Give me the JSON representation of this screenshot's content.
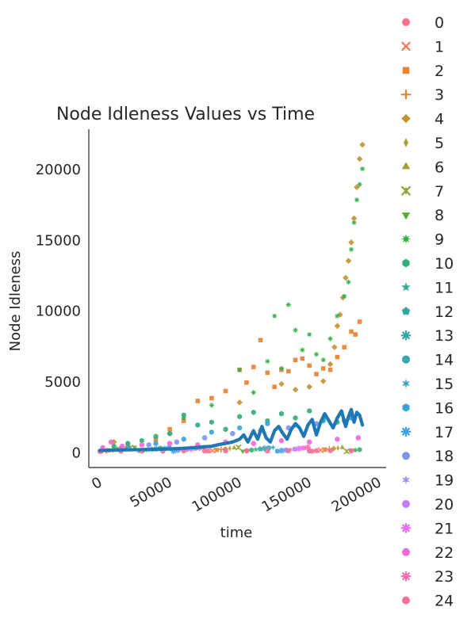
{
  "chart_data": {
    "type": "scatter",
    "title": "Node Idleness Values vs Time",
    "xlabel": "time",
    "ylabel": "Node Idleness",
    "xlim": [
      -8000,
      205000
    ],
    "ylim": [
      -1100,
      22800
    ],
    "xticks": [
      0,
      50000,
      100000,
      150000,
      200000
    ],
    "yticks": [
      0,
      5000,
      10000,
      15000,
      20000
    ],
    "grid": false,
    "legend_placement": "right",
    "legend": [
      {
        "label": "0",
        "marker": "circle",
        "color": "#f77189"
      },
      {
        "label": "1",
        "marker": "x",
        "color": "#f7754f"
      },
      {
        "label": "2",
        "marker": "square",
        "color": "#e68332"
      },
      {
        "label": "3",
        "marker": "plus",
        "color": "#d58c32"
      },
      {
        "label": "4",
        "marker": "diamond",
        "color": "#c39532"
      },
      {
        "label": "5",
        "marker": "thin-diamond",
        "color": "#b29c32"
      },
      {
        "label": "6",
        "marker": "triangle-up",
        "color": "#a3a032"
      },
      {
        "label": "7",
        "marker": "tri-x",
        "color": "#8ca632"
      },
      {
        "label": "8",
        "marker": "triangle-down",
        "color": "#56ae32"
      },
      {
        "label": "9",
        "marker": "star-x",
        "color": "#32b14a"
      },
      {
        "label": "10",
        "marker": "hexagon",
        "color": "#33ae7a"
      },
      {
        "label": "11",
        "marker": "star",
        "color": "#34ac8f"
      },
      {
        "label": "12",
        "marker": "pentagon",
        "color": "#35aa9c"
      },
      {
        "label": "13",
        "marker": "asterisk",
        "color": "#36a8a9"
      },
      {
        "label": "14",
        "marker": "octagon",
        "color": "#37a6b5"
      },
      {
        "label": "15",
        "marker": "star-thin",
        "color": "#39a4c5"
      },
      {
        "label": "16",
        "marker": "hexagon",
        "color": "#3ba3d8"
      },
      {
        "label": "17",
        "marker": "asterisk",
        "color": "#3fa0ec"
      },
      {
        "label": "18",
        "marker": "circle",
        "color": "#7a96f4"
      },
      {
        "label": "19",
        "marker": "star-thin",
        "color": "#a48cf4"
      },
      {
        "label": "20",
        "marker": "circle",
        "color": "#c47cf4"
      },
      {
        "label": "21",
        "marker": "asterisk",
        "color": "#e66cf4"
      },
      {
        "label": "22",
        "marker": "circle",
        "color": "#f469d8"
      },
      {
        "label": "23",
        "marker": "asterisk",
        "color": "#f56cb5"
      },
      {
        "label": "24",
        "marker": "circle",
        "color": "#f66f9a"
      }
    ],
    "mean_line": {
      "color": "#1f77b4",
      "x": [
        0,
        5000,
        10000,
        20000,
        30000,
        40000,
        50000,
        60000,
        70000,
        80000,
        85000,
        90000,
        95000,
        100000,
        103000,
        106000,
        110000,
        113000,
        116000,
        119000,
        122000,
        125000,
        128000,
        131000,
        134000,
        137000,
        140000,
        143000,
        146000,
        149000,
        152000,
        155000,
        158000,
        161000,
        164000,
        167000,
        170000,
        173000,
        176000,
        178000,
        180000,
        182000,
        184000,
        186000,
        188000
      ],
      "y": [
        100,
        120,
        130,
        150,
        170,
        190,
        210,
        260,
        320,
        400,
        520,
        600,
        700,
        900,
        1200,
        700,
        1500,
        900,
        1800,
        1000,
        700,
        1500,
        1800,
        1300,
        900,
        1600,
        2000,
        1700,
        1100,
        1900,
        2300,
        1200,
        2100,
        2700,
        2200,
        1700,
        2400,
        2900,
        1800,
        2500,
        3000,
        2100,
        2800,
        2600,
        1900
      ]
    },
    "scatter_series": [
      {
        "index": 2,
        "x": [
          20000,
          40000,
          50000,
          60000,
          70000,
          80000,
          90000,
          100000,
          105000,
          110000,
          115000,
          120000,
          125000,
          130000,
          135000,
          140000,
          145000,
          150000,
          155000,
          160000,
          165000,
          170000,
          175000,
          180000,
          183000,
          186000
        ],
        "y": [
          500,
          900,
          1600,
          2200,
          3600,
          3800,
          4300,
          5800,
          4900,
          6000,
          7900,
          5600,
          4600,
          5800,
          5700,
          6500,
          6600,
          6100,
          5500,
          5900,
          5800,
          6700,
          7400,
          8500,
          8300,
          9200
        ]
      },
      {
        "index": 4,
        "x": [
          10000,
          50000,
          100000,
          130000,
          140000,
          150000,
          160000,
          165000,
          168000,
          170000,
          172000,
          174000,
          176000,
          178000,
          180000,
          182000,
          184000,
          186000,
          188000
        ],
        "y": [
          700,
          1300,
          3500,
          4800,
          4400,
          4600,
          5000,
          6200,
          7400,
          8900,
          9700,
          10900,
          12300,
          13500,
          14800,
          16500,
          18700,
          20700,
          21700
        ]
      },
      {
        "index": 9,
        "x": [
          60000,
          80000,
          100000,
          110000,
          120000,
          125000,
          130000,
          135000,
          140000,
          145000,
          150000,
          155000,
          160000,
          165000,
          170000,
          175000,
          178000,
          180000,
          182000,
          184000,
          186000,
          188000
        ],
        "y": [
          2400,
          3300,
          5800,
          4200,
          6400,
          9600,
          5900,
          10400,
          8600,
          7200,
          8300,
          6900,
          6500,
          8000,
          9600,
          11000,
          12000,
          14300,
          16200,
          17800,
          18900,
          20000
        ]
      },
      {
        "index": 10,
        "x": [
          10000,
          20000,
          30000,
          40000,
          50000,
          60000,
          70000,
          80000,
          90000,
          100000,
          110000,
          120000,
          130000,
          140000,
          150000,
          160000,
          170000,
          180000
        ],
        "y": [
          400,
          600,
          800,
          1100,
          1300,
          2600,
          1900,
          2100,
          1600,
          2500,
          2800,
          2200,
          2700,
          2400,
          2900,
          2300,
          2100,
          2600
        ]
      },
      {
        "index": 16,
        "x": [
          20000,
          40000,
          60000,
          80000,
          100000,
          120000,
          140000,
          160000,
          180000
        ],
        "y": [
          300,
          600,
          900,
          1400,
          1700,
          2000,
          1900,
          2200,
          2400
        ]
      },
      {
        "index": 18,
        "x": [
          15000,
          35000,
          55000,
          75000,
          95000,
          115000,
          135000,
          155000,
          175000
        ],
        "y": [
          250,
          500,
          700,
          1000,
          1300,
          1500,
          1700,
          2000,
          2200
        ]
      },
      {
        "index": 22,
        "x": [
          2000,
          8000,
          16000,
          30000,
          50000,
          70000,
          90000,
          110000,
          130000,
          150000,
          170000,
          185000
        ],
        "y": [
          300,
          700,
          400,
          500,
          600,
          500,
          700,
          600,
          800,
          700,
          900,
          1000
        ]
      },
      {
        "index": 24,
        "x": [
          0,
          15000,
          30000,
          45000,
          60000,
          75000,
          90000,
          105000,
          120000,
          135000,
          150000,
          165000,
          180000
        ],
        "y": [
          50,
          60,
          70,
          60,
          80,
          70,
          90,
          80,
          70,
          90,
          80,
          100,
          90
        ]
      }
    ]
  }
}
